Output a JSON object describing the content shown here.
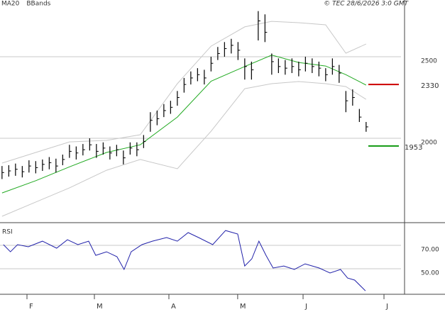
{
  "chart_data": [
    {
      "type": "ohlc",
      "title": "© TEC 28/6/2026 3:0 GMT",
      "x": [
        0,
        2,
        4,
        6,
        8,
        10,
        12,
        14,
        16,
        18,
        20,
        22,
        24,
        26,
        28,
        30,
        32,
        34,
        36,
        38,
        40,
        42,
        44,
        46,
        48,
        50,
        52,
        54,
        56,
        58,
        60,
        62,
        64,
        66,
        68,
        70,
        72,
        74,
        76,
        78,
        80,
        82,
        84,
        86,
        88,
        90,
        92,
        94,
        96,
        98,
        100,
        102,
        104,
        106,
        108
      ],
      "high": [
        1830,
        1835,
        1845,
        1830,
        1865,
        1860,
        1870,
        1885,
        1875,
        1900,
        1960,
        1950,
        1965,
        2000,
        1965,
        1975,
        1950,
        1960,
        1925,
        1975,
        1975,
        2020,
        2160,
        2170,
        2210,
        2230,
        2290,
        2370,
        2410,
        2430,
        2420,
        2500,
        2560,
        2590,
        2610,
        2590,
        2490,
        2470,
        2780,
        2760,
        2520,
        2490,
        2480,
        2490,
        2470,
        2500,
        2490,
        2470,
        2430,
        2490,
        2450,
        2290,
        2300,
        2180,
        2100
      ],
      "low": [
        1750,
        1765,
        1770,
        1760,
        1790,
        1785,
        1800,
        1810,
        1790,
        1835,
        1880,
        1870,
        1895,
        1925,
        1880,
        1900,
        1870,
        1890,
        1840,
        1900,
        1890,
        1940,
        2040,
        2080,
        2130,
        2150,
        2200,
        2280,
        2330,
        2350,
        2330,
        2410,
        2480,
        2500,
        2520,
        2480,
        2360,
        2360,
        2600,
        2590,
        2390,
        2400,
        2390,
        2400,
        2380,
        2410,
        2400,
        2380,
        2350,
        2390,
        2340,
        2160,
        2200,
        2100,
        2040
      ],
      "close": [
        1790,
        1800,
        1810,
        1795,
        1830,
        1820,
        1840,
        1850,
        1830,
        1870,
        1920,
        1910,
        1930,
        1960,
        1920,
        1940,
        1910,
        1930,
        1880,
        1940,
        1930,
        1980,
        2110,
        2120,
        2170,
        2190,
        2250,
        2330,
        2370,
        2390,
        2370,
        2460,
        2520,
        2550,
        2570,
        2540,
        2440,
        2420,
        2720,
        2650,
        2470,
        2440,
        2430,
        2440,
        2420,
        2460,
        2440,
        2430,
        2390,
        2440,
        2400,
        2230,
        2250,
        2130,
        2070
      ],
      "color": "#000000",
      "overlays": [
        {
          "name": "MA20",
          "color": "#22aa22",
          "x": [
            0,
            10,
            20,
            31,
            41,
            52,
            62,
            72,
            80,
            88,
            96,
            102,
            108
          ],
          "values": [
            1665,
            1740,
            1825,
            1913,
            1960,
            2130,
            2350,
            2440,
            2510,
            2465,
            2443,
            2390,
            2326
          ]
        },
        {
          "name": "BBands",
          "color": "#c8c8c8",
          "x": [
            0,
            10,
            20,
            31,
            41,
            52,
            62,
            72,
            80,
            88,
            96,
            102,
            108
          ],
          "upper": [
            1848,
            1913,
            1978,
            1987,
            2022,
            2335,
            2565,
            2683,
            2717,
            2709,
            2696,
            2522,
            2578
          ],
          "lower": [
            1522,
            1609,
            1696,
            1804,
            1870,
            1813,
            2043,
            2304,
            2335,
            2348,
            2335,
            2317,
            2239
          ]
        }
      ],
      "levels": [
        {
          "value": 2330,
          "color": "#cc0000"
        },
        {
          "value": 1953,
          "color": "#119911"
        }
      ],
      "xlim": [
        -0.6,
        119.4
      ],
      "ylim": [
        1487,
        2848
      ],
      "yticks": [
        2000,
        2500
      ],
      "grid": true
    },
    {
      "type": "line",
      "title": "RSI",
      "x": [
        0.4,
        2.5,
        4.6,
        7.8,
        12,
        16.2,
        19.4,
        22.5,
        25.7,
        27.8,
        31,
        34.1,
        36.2,
        38.3,
        41.5,
        44.6,
        48.8,
        52,
        55.2,
        58.3,
        62.5,
        66.3,
        69.9,
        72,
        74.1,
        76.2,
        78.3,
        80.4,
        83.6,
        86.7,
        89.9,
        94.1,
        97.3,
        100.4,
        102.5,
        104.6,
        107.8
      ],
      "values": [
        70.6,
        64.5,
        70.6,
        68.8,
        73.6,
        67.6,
        74.8,
        70.6,
        73.6,
        61.5,
        64.5,
        60.3,
        49.4,
        64.5,
        70.6,
        73.6,
        76.7,
        73.6,
        80.9,
        76.7,
        70.6,
        82.7,
        79.7,
        52.4,
        58.5,
        73.6,
        61.5,
        50.6,
        52.4,
        49.4,
        54.2,
        50.6,
        46.4,
        49.4,
        42.1,
        40.3,
        31.2
      ],
      "color": "#2222aa",
      "xlim": [
        -0.6,
        119.4
      ],
      "ylim": [
        28.2,
        88.2
      ],
      "yticks": [
        {
          "value": 70,
          "label": "70.00"
        },
        {
          "value": 50,
          "label": "50.00"
        }
      ],
      "xticks": [
        {
          "value": 7.4,
          "label": "F"
        },
        {
          "value": 27.4,
          "label": "M"
        },
        {
          "value": 49.5,
          "label": "A"
        },
        {
          "value": 69.9,
          "label": "M"
        },
        {
          "value": 89.3,
          "label": "J"
        },
        {
          "value": 113.3,
          "label": "J"
        }
      ],
      "grid": true
    }
  ]
}
